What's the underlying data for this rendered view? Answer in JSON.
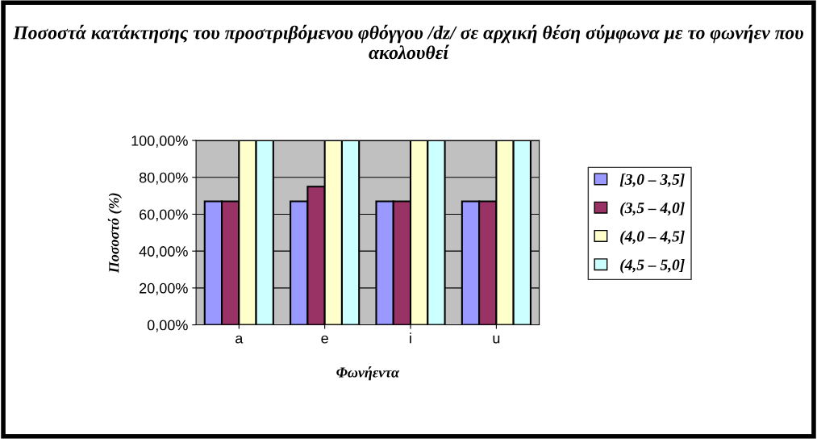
{
  "chart_data": {
    "type": "bar",
    "title": "Ποσοστά κατάκτησης του προστριβόμενου φθόγγου /dz/ σε αρχική θέση σύμφωνα με το φωνήεν που ακολουθεί",
    "xlabel": "Φωνήεντα",
    "ylabel": "Ποσοστό (%)",
    "categories": [
      "a",
      "e",
      "i",
      "u"
    ],
    "series": [
      {
        "name": "[3,0 – 3,5]",
        "color": "#9999ff",
        "values": [
          67,
          67,
          67,
          67
        ]
      },
      {
        "name": "(3,5 – 4,0]",
        "color": "#993366",
        "values": [
          67,
          75,
          67,
          67
        ]
      },
      {
        "name": "(4,0 – 4,5]",
        "color": "#ffffcc",
        "values": [
          100,
          100,
          100,
          100
        ]
      },
      {
        "name": "(4,5 – 5,0]",
        "color": "#ccffff",
        "values": [
          100,
          100,
          100,
          100
        ]
      }
    ],
    "ylim": [
      0,
      100
    ],
    "yticks": [
      {
        "value": 0,
        "label": "0,00%"
      },
      {
        "value": 20,
        "label": "20,00%"
      },
      {
        "value": 40,
        "label": "40,00%"
      },
      {
        "value": 60,
        "label": "60,00%"
      },
      {
        "value": 80,
        "label": "80,00%"
      },
      {
        "value": 100,
        "label": "100,00%"
      }
    ],
    "grid": "y",
    "legend": "right"
  }
}
